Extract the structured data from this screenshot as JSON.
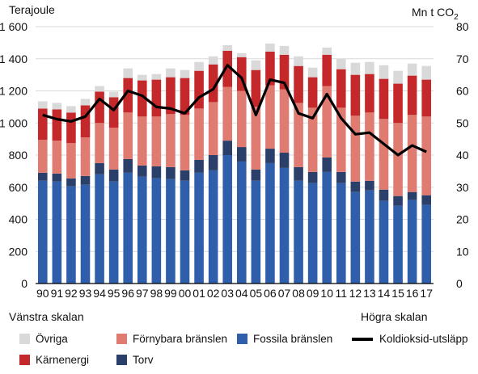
{
  "chart_data": {
    "type": "bar",
    "stacked": true,
    "left_axis_title": "Terajoule",
    "right_axis_title": "Mn t CO",
    "right_axis_title_sub": "2",
    "left_ylim": [
      0,
      1600
    ],
    "right_ylim": [
      0,
      80
    ],
    "left_ticks": [
      "0",
      "200",
      "400",
      "600",
      "800",
      "1 000",
      "1 200",
      "1 400",
      "1 600"
    ],
    "left_tick_values": [
      0,
      200,
      400,
      600,
      800,
      1000,
      1200,
      1400,
      1600
    ],
    "right_ticks": [
      "0",
      "10",
      "20",
      "30",
      "40",
      "50",
      "60",
      "70",
      "80"
    ],
    "right_tick_values": [
      0,
      10,
      20,
      30,
      40,
      50,
      60,
      70,
      80
    ],
    "grid": true,
    "categories": [
      "90",
      "91",
      "92",
      "93",
      "94",
      "95",
      "96",
      "97",
      "98",
      "99",
      "00",
      "01",
      "02",
      "03",
      "04",
      "05",
      "06",
      "07",
      "08",
      "09",
      "10",
      "11",
      "12",
      "13",
      "14",
      "15",
      "16",
      "17"
    ],
    "series": [
      {
        "name": "Fossila bränslen",
        "color": "#2f5eab",
        "axis": "left",
        "values": [
          640,
          635,
          605,
          615,
          680,
          635,
          690,
          665,
          655,
          650,
          640,
          690,
          705,
          800,
          760,
          640,
          750,
          720,
          640,
          625,
          695,
          625,
          570,
          580,
          515,
          485,
          520,
          490
        ]
      },
      {
        "name": "Torv",
        "color": "#2b3f6b",
        "axis": "left",
        "values": [
          50,
          50,
          50,
          55,
          70,
          75,
          85,
          70,
          75,
          75,
          65,
          80,
          95,
          90,
          90,
          70,
          90,
          95,
          85,
          70,
          90,
          70,
          65,
          60,
          70,
          60,
          50,
          60
        ]
      },
      {
        "name": "Förnybara bränslen",
        "color": "#e07b72",
        "axis": "left",
        "values": [
          205,
          205,
          220,
          240,
          250,
          260,
          290,
          305,
          310,
          330,
          345,
          320,
          330,
          335,
          350,
          390,
          395,
          395,
          400,
          400,
          445,
          400,
          410,
          425,
          440,
          455,
          480,
          490
        ]
      },
      {
        "name": "Kärnenergi",
        "color": "#c5282b",
        "axis": "left",
        "values": [
          195,
          195,
          190,
          200,
          195,
          190,
          215,
          225,
          230,
          230,
          230,
          235,
          235,
          225,
          210,
          230,
          210,
          215,
          230,
          190,
          195,
          240,
          255,
          240,
          250,
          245,
          245,
          230
        ]
      },
      {
        "name": "Övriga",
        "color": "#d9d9d9",
        "axis": "left",
        "values": [
          45,
          40,
          40,
          40,
          35,
          35,
          60,
          35,
          35,
          55,
          50,
          55,
          50,
          35,
          25,
          60,
          50,
          55,
          60,
          60,
          45,
          65,
          75,
          75,
          85,
          80,
          75,
          85
        ]
      },
      {
        "name": "Koldioksid-utsläpp",
        "color": "#000000",
        "axis": "right",
        "kind": "line",
        "values": [
          52.5,
          51.2,
          50.5,
          52.0,
          57.5,
          54.0,
          60.0,
          58.5,
          55.0,
          54.5,
          53.0,
          58.0,
          60.5,
          68.0,
          64.0,
          52.5,
          63.5,
          62.5,
          53.0,
          51.5,
          59.0,
          51.5,
          46.5,
          47.0,
          43.5,
          40.0,
          43.0,
          41.0
        ]
      }
    ]
  },
  "legend": {
    "left_scale_label": "Vänstra skalan",
    "right_scale_label": "Högra skalan",
    "items": [
      {
        "label": "Övriga",
        "color": "#d9d9d9",
        "kind": "box"
      },
      {
        "label": "Förnybara bränslen",
        "color": "#e07b72",
        "kind": "box"
      },
      {
        "label": "Fossila bränslen",
        "color": "#2f5eab",
        "kind": "box"
      },
      {
        "label": "Koldioksid-utsläpp",
        "color": "#000000",
        "kind": "line"
      },
      {
        "label": "Kärnenergi",
        "color": "#c5282b",
        "kind": "box"
      },
      {
        "label": "Torv",
        "color": "#2b3f6b",
        "kind": "box"
      }
    ]
  }
}
